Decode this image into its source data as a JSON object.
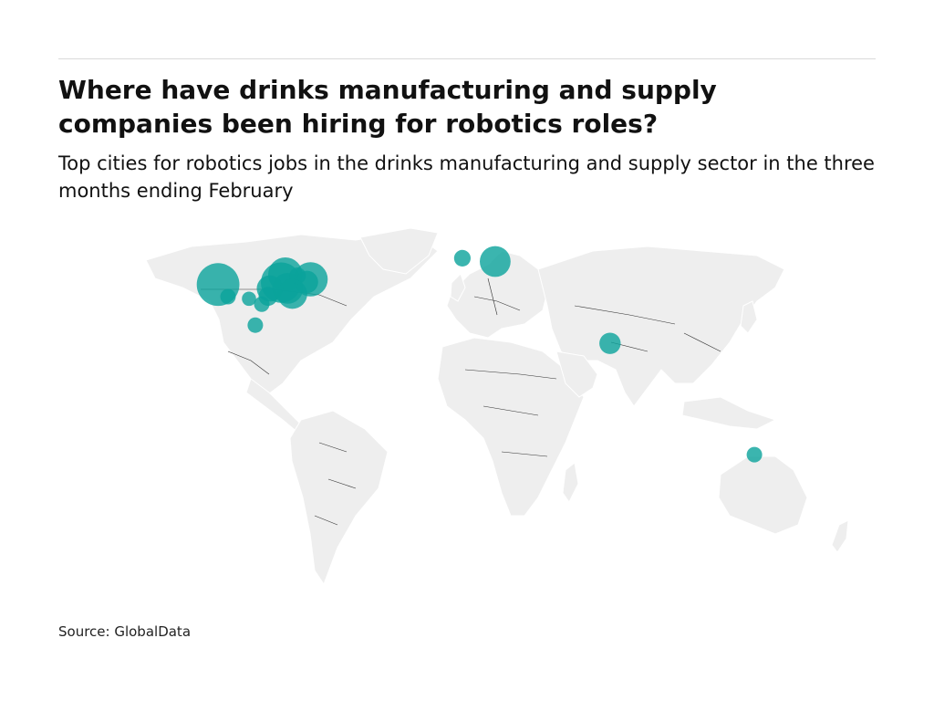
{
  "header": {
    "title": "Where have drinks manufacturing and supply companies been hiring for robotics roles?",
    "subtitle": "Top cities for robotics jobs in the drinks manufacturing and supply sector in the three months ending February"
  },
  "footer": {
    "source": "Source: GlobalData"
  },
  "colors": {
    "bubble": "#0aa39b",
    "bubble_dark": "#075d58",
    "land": "#eeeeee",
    "border": "#333333"
  },
  "map_points": [
    {
      "lon": -122.3,
      "lat": 37.8,
      "size": 3.6
    },
    {
      "lon": -117.2,
      "lat": 32.7,
      "size": 1.3
    },
    {
      "lon": -106.5,
      "lat": 31.8,
      "size": 1.2
    },
    {
      "lon": -96.8,
      "lat": 32.8,
      "size": 1.6
    },
    {
      "lon": -95.9,
      "lat": 36.1,
      "size": 2.2
    },
    {
      "lon": -90.2,
      "lat": 38.6,
      "size": 3.4
    },
    {
      "lon": -88.0,
      "lat": 42.0,
      "size": 2.9
    },
    {
      "lon": -86.8,
      "lat": 36.2,
      "size": 2.6
    },
    {
      "lon": -84.4,
      "lat": 33.8,
      "size": 2.5
    },
    {
      "lon": -81.7,
      "lat": 41.5,
      "size": 1.4
    },
    {
      "lon": -77.0,
      "lat": 38.9,
      "size": 1.9
    },
    {
      "lon": -75.1,
      "lat": 40.0,
      "size": 2.9
    },
    {
      "lon": -100.0,
      "lat": 29.5,
      "size": 1.3
    },
    {
      "lon": -103.3,
      "lat": 20.7,
      "size": 1.3
    },
    {
      "lon": 2.3,
      "lat": 48.9,
      "size": 1.4
    },
    {
      "lon": 19.0,
      "lat": 47.5,
      "size": 2.6
    },
    {
      "lon": 77.6,
      "lat": 13.0,
      "size": 1.8
    },
    {
      "lon": 151.2,
      "lat": -33.9,
      "size": 1.3
    }
  ]
}
